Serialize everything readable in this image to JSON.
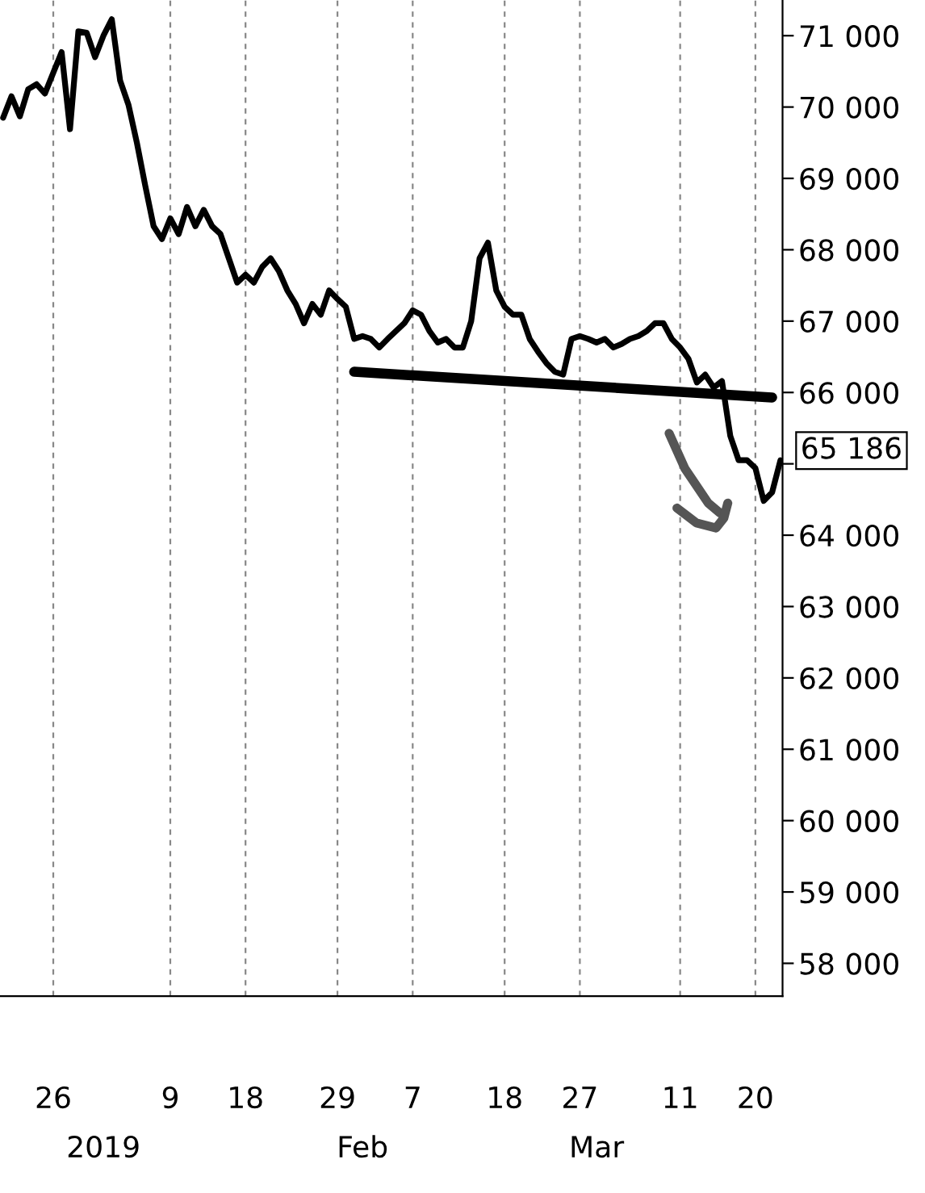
{
  "chart_data": {
    "type": "line",
    "x": [
      "2018-12-20",
      "2018-12-21",
      "2018-12-22",
      "2018-12-23",
      "2018-12-24",
      "2018-12-25",
      "2018-12-26",
      "2018-12-27",
      "2018-12-28",
      "2018-12-29",
      "2018-12-30",
      "2018-12-31",
      "2019-01-01",
      "2019-01-02",
      "2019-01-03",
      "2019-01-04",
      "2019-01-05",
      "2019-01-06",
      "2019-01-07",
      "2019-01-08",
      "2019-01-09",
      "2019-01-10",
      "2019-01-11",
      "2019-01-12",
      "2019-01-13",
      "2019-01-14",
      "2019-01-15",
      "2019-01-16",
      "2019-01-17",
      "2019-01-18",
      "2019-01-19",
      "2019-01-20",
      "2019-01-21",
      "2019-01-22",
      "2019-01-23",
      "2019-01-24",
      "2019-01-25",
      "2019-01-26",
      "2019-01-27",
      "2019-01-28",
      "2019-01-29",
      "2019-01-30",
      "2019-01-31",
      "2019-02-01",
      "2019-02-02",
      "2019-02-03",
      "2019-02-04",
      "2019-02-05",
      "2019-02-06",
      "2019-02-07",
      "2019-02-08",
      "2019-02-09",
      "2019-02-10",
      "2019-02-11",
      "2019-02-12",
      "2019-02-13",
      "2019-02-14",
      "2019-02-15",
      "2019-02-16",
      "2019-02-17",
      "2019-02-18",
      "2019-02-19",
      "2019-02-20",
      "2019-02-21",
      "2019-02-22",
      "2019-02-23",
      "2019-02-24",
      "2019-02-25",
      "2019-02-26",
      "2019-02-27",
      "2019-02-28",
      "2019-03-01",
      "2019-03-02",
      "2019-03-03",
      "2019-03-04",
      "2019-03-05",
      "2019-03-06",
      "2019-03-07",
      "2019-03-08",
      "2019-03-09",
      "2019-03-10",
      "2019-03-11",
      "2019-03-12",
      "2019-03-13",
      "2019-03-14",
      "2019-03-15",
      "2019-03-16",
      "2019-03-17",
      "2019-03-18",
      "2019-03-19",
      "2019-03-20",
      "2019-03-21",
      "2019-03-22",
      "2019-03-23"
    ],
    "series": [
      {
        "color": "#000000",
        "values": [
          69850,
          70150,
          69870,
          70250,
          70320,
          70190,
          70480,
          70770,
          69690,
          71060,
          71040,
          70700,
          71000,
          71230,
          70370,
          70030,
          69500,
          68900,
          68330,
          68150,
          68440,
          68220,
          68600,
          68330,
          68560,
          68330,
          68220,
          67880,
          67540,
          67650,
          67540,
          67760,
          67880,
          67700,
          67430,
          67240,
          66970,
          67240,
          67090,
          67430,
          67310,
          67200,
          66750,
          66790,
          66750,
          66630,
          66750,
          66860,
          66970,
          67150,
          67090,
          66860,
          66700,
          66750,
          66630,
          66630,
          67000,
          67880,
          68100,
          67430,
          67200,
          67090,
          67090,
          66750,
          66570,
          66410,
          66290,
          66250,
          66750,
          66790,
          66750,
          66700,
          66750,
          66630,
          66680,
          66750,
          66790,
          66860,
          66970,
          66970,
          66750,
          66630,
          66470,
          66140,
          66250,
          66070,
          66160,
          65390,
          65050,
          65050,
          64940,
          64480,
          64600,
          65050
        ]
      },
      {
        "type": "line",
        "x": [
          "2019-01-31",
          "2019-03-22"
        ],
        "color": "#000000",
        "values": [
          66290,
          65930
        ]
      }
    ],
    "xlim": [
      "2018-12-19T15:00",
      "2019-03-23T06:00"
    ],
    "xticks": [
      {
        "value": "2018-12-26",
        "label": "26"
      },
      {
        "value": "2019-01-09",
        "label": "9"
      },
      {
        "value": "2019-01-18",
        "label": "18"
      },
      {
        "value": "2019-01-29",
        "label": "29"
      },
      {
        "value": "2019-02-07",
        "label": "7"
      },
      {
        "value": "2019-02-18",
        "label": "18"
      },
      {
        "value": "2019-02-27",
        "label": "27"
      },
      {
        "value": "2019-03-11",
        "label": "11"
      },
      {
        "value": "2019-03-20",
        "label": "20"
      }
    ],
    "x2lim": [
      "2018-12-19T15:00",
      "2019-03-23T06:00"
    ],
    "x2ticks": [
      {
        "value": "2019-01-01",
        "label": "2019"
      },
      {
        "value": "2019-02-01",
        "label": "Feb"
      },
      {
        "value": "2019-03-01",
        "label": "Mar"
      }
    ],
    "ylim": [
      57540,
      71500
    ],
    "yticks": [
      {
        "value": 58000,
        "label": "58 000"
      },
      {
        "value": 59000,
        "label": "59 000"
      },
      {
        "value": 60000,
        "label": "60 000"
      },
      {
        "value": 61000,
        "label": "61 000"
      },
      {
        "value": 62000,
        "label": "62 000"
      },
      {
        "value": 63000,
        "label": "63 000"
      },
      {
        "value": 64000,
        "label": "64 000"
      },
      {
        "value": 65000,
        "label": null
      },
      {
        "value": 66000,
        "label": "66 000"
      },
      {
        "value": 67000,
        "label": "67 000"
      },
      {
        "value": 68000,
        "label": "68 000"
      },
      {
        "value": 69000,
        "label": "69 000"
      },
      {
        "value": 70000,
        "label": "70 000"
      },
      {
        "value": 71000,
        "label": "71 000"
      }
    ],
    "annotations": [
      {
        "text": "65 186",
        "x": "2019-03-23T06:00",
        "y": 65186
      }
    ],
    "grid": "x",
    "line_style": "solid",
    "marker": "none",
    "legend": false
  }
}
